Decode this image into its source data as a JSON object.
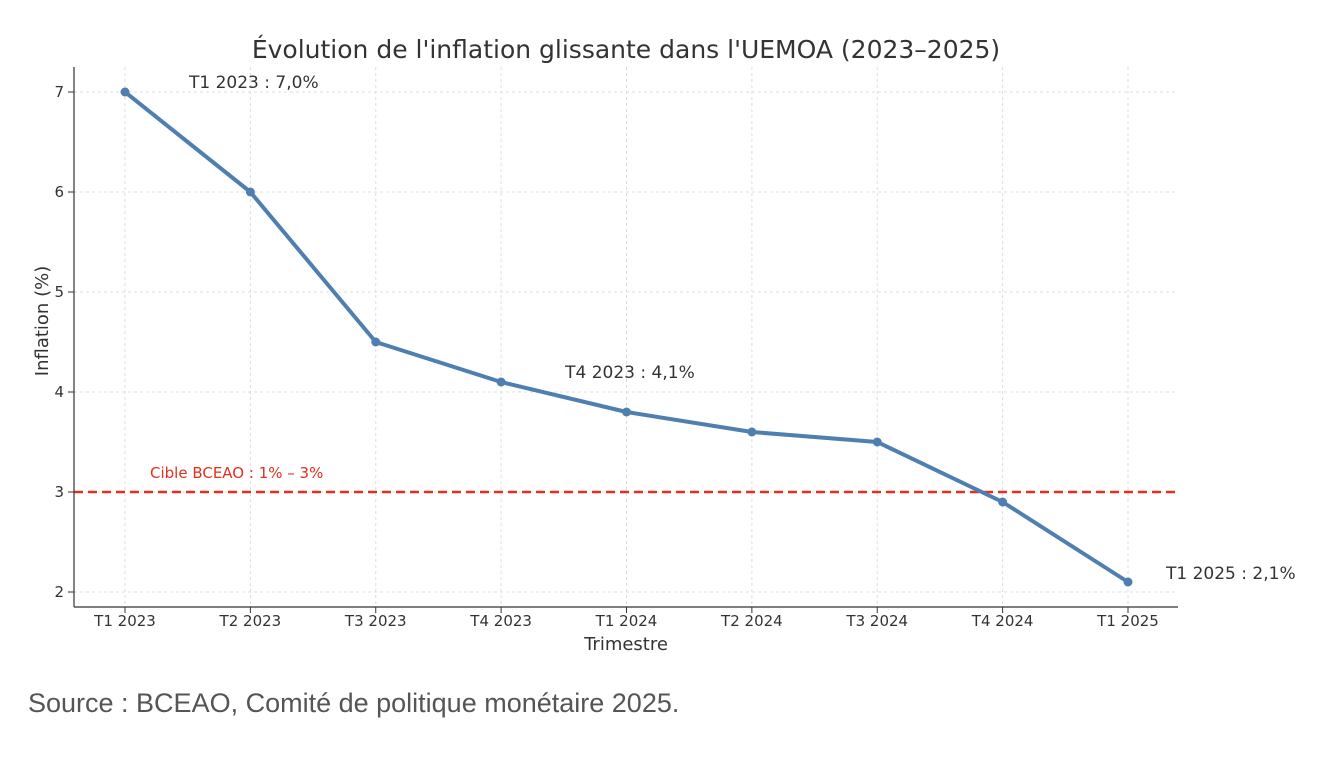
{
  "source_note": "Source : BCEAO, Comité de politique monétaire 2025.",
  "chart_data": {
    "type": "line",
    "title": "Évolution de l'inflation glissante dans l'UEMOA (2023–2025)",
    "xlabel": "Trimestre",
    "ylabel": "Inflation (%)",
    "categories": [
      "T1 2023",
      "T2 2023",
      "T3 2023",
      "T4 2023",
      "T1 2024",
      "T2 2024",
      "T3 2024",
      "T4 2024",
      "T1 2025"
    ],
    "series": [
      {
        "values": [
          7.0,
          6.0,
          4.5,
          4.1,
          3.8,
          3.6,
          3.5,
          2.9,
          2.1
        ],
        "color": "#4f7fb0"
      }
    ],
    "ylim": [
      1.85,
      7.25
    ],
    "yticks": [
      2,
      3,
      4,
      5,
      6,
      7
    ],
    "grid": true,
    "reference_line": {
      "value": 3,
      "label": "Cible BCEAO : 1% – 3%",
      "color": "#e03020"
    },
    "annotations": [
      {
        "index": 0,
        "text": "T1 2023 : 7,0%"
      },
      {
        "index": 3,
        "text": "T4 2023 : 4,1%"
      },
      {
        "index": 8,
        "text": "T1 2025 : 2,1%"
      }
    ]
  }
}
